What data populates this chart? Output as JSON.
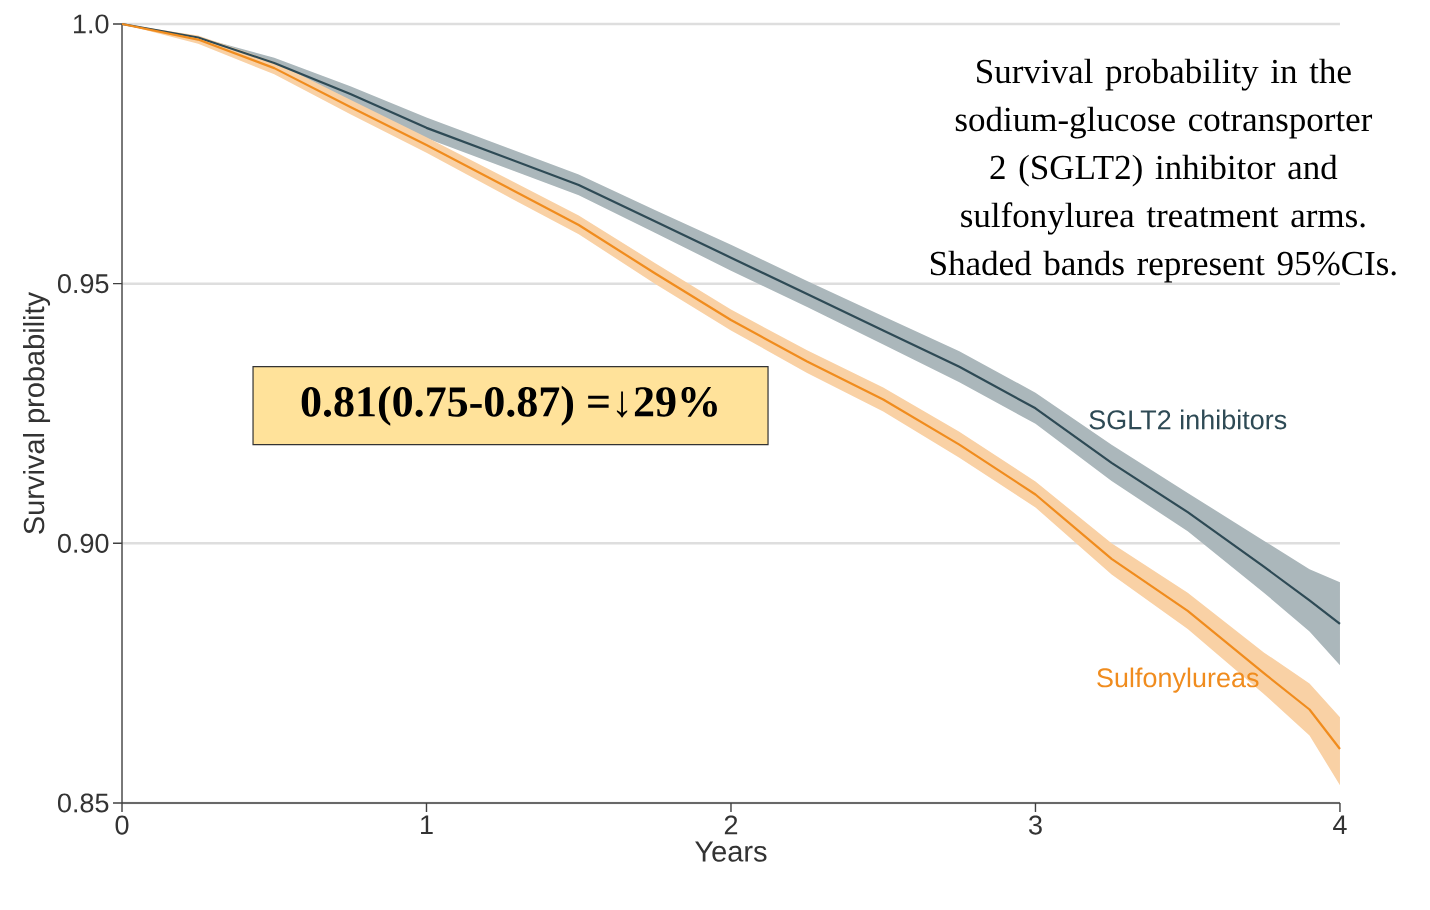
{
  "chart_data": {
    "type": "line",
    "xlabel": "Years",
    "ylabel": "Survival probability",
    "x": [
      0,
      0.25,
      0.5,
      0.75,
      1,
      1.25,
      1.5,
      1.75,
      2,
      2.25,
      2.5,
      2.75,
      3,
      3.25,
      3.5,
      3.75,
      3.9,
      4
    ],
    "series": [
      {
        "name": "SGLT2 inhibitors",
        "color": "#2e4a55",
        "values": [
          1.0,
          0.9974,
          0.9925,
          0.9865,
          0.98,
          0.9745,
          0.969,
          0.962,
          0.955,
          0.948,
          0.941,
          0.934,
          0.926,
          0.9155,
          0.906,
          0.8955,
          0.889,
          0.8845
        ],
        "lower": [
          1.0,
          0.9965,
          0.9915,
          0.985,
          0.978,
          0.9725,
          0.967,
          0.9598,
          0.9525,
          0.9455,
          0.9383,
          0.931,
          0.923,
          0.912,
          0.9023,
          0.8905,
          0.883,
          0.8765
        ],
        "upper": [
          1.0,
          0.9975,
          0.9935,
          0.988,
          0.982,
          0.9765,
          0.971,
          0.9642,
          0.9575,
          0.9505,
          0.9437,
          0.937,
          0.929,
          0.919,
          0.9097,
          0.9005,
          0.895,
          0.8925
        ]
      },
      {
        "name": "Sulfonylureas",
        "color": "#f08c1e",
        "values": [
          1.0,
          0.997,
          0.9915,
          0.984,
          0.9767,
          0.969,
          0.9613,
          0.952,
          0.943,
          0.935,
          0.9277,
          0.919,
          0.9094,
          0.897,
          0.887,
          0.875,
          0.868,
          0.8604
        ],
        "lower": [
          1.0,
          0.9962,
          0.9903,
          0.9826,
          0.9752,
          0.9673,
          0.9595,
          0.95,
          0.941,
          0.9328,
          0.9254,
          0.9165,
          0.9069,
          0.894,
          0.8835,
          0.871,
          0.863,
          0.8534
        ],
        "upper": [
          1.0,
          0.9978,
          0.9927,
          0.9854,
          0.9782,
          0.9707,
          0.9631,
          0.954,
          0.945,
          0.9372,
          0.93,
          0.9215,
          0.9119,
          0.9,
          0.8905,
          0.879,
          0.873,
          0.8665
        ]
      }
    ],
    "xlim": [
      0,
      4
    ],
    "ylim": [
      0.85,
      1.0
    ],
    "xticks": [
      0,
      1,
      2,
      3,
      4
    ],
    "yticks": [
      0.85,
      {
        "value": 0.9,
        "label": "0.90"
      },
      0.95,
      {
        "value": 1.0,
        "label": "1.0"
      }
    ],
    "grid": "y",
    "legend": false,
    "annotations": [
      "Survival probability in the sodium-glucose cotransporter 2 (SGLT2) inhibitor and sulfonylurea treatment arms. Shaded bands represent 95%CIs.",
      "0.81(0.75-0.87) =↓29%"
    ]
  }
}
